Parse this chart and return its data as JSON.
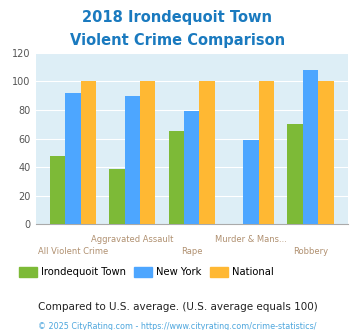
{
  "title_line1": "2018 Irondequoit Town",
  "title_line2": "Violent Crime Comparison",
  "categories": [
    "All Violent Crime",
    "Aggravated Assault",
    "Rape",
    "Murder & Mans...",
    "Robbery"
  ],
  "irondequoit": [
    48,
    39,
    65,
    0,
    70
  ],
  "new_york": [
    92,
    90,
    79,
    59,
    108
  ],
  "national": [
    100,
    100,
    100,
    100,
    100
  ],
  "irondequoit_color": "#7dba37",
  "new_york_color": "#4da6ff",
  "national_color": "#ffb833",
  "ylim": [
    0,
    120
  ],
  "yticks": [
    0,
    20,
    40,
    60,
    80,
    100,
    120
  ],
  "plot_bg": "#ddeef6",
  "title_color": "#1a7abf",
  "axis_label_color": "#b09070",
  "legend_labels": [
    "Irondequoit Town",
    "New York",
    "National"
  ],
  "footnote1": "Compared to U.S. average. (U.S. average equals 100)",
  "footnote2": "© 2025 CityRating.com - https://www.cityrating.com/crime-statistics/",
  "footnote1_color": "#222222",
  "footnote2_color": "#4da6dd"
}
